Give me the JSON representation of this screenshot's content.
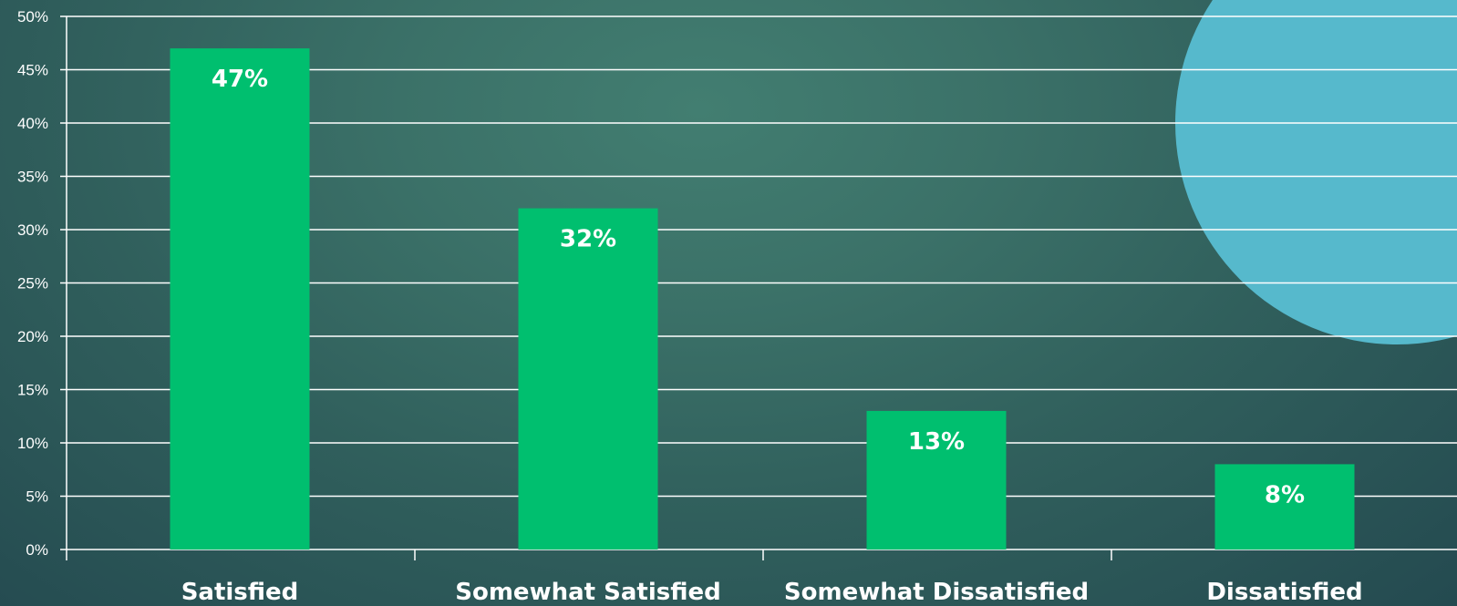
{
  "chart_data": {
    "type": "bar",
    "categories": [
      "Satisfied",
      "Somewhat Satisfied",
      "Somewhat Dissatisfied",
      "Dissatisfied"
    ],
    "values": [
      47,
      32,
      13,
      8
    ],
    "data_labels": [
      "47%",
      "32%",
      "13%",
      "8%"
    ],
    "ylim": [
      0,
      50
    ],
    "yticks": [
      0,
      5,
      10,
      15,
      20,
      25,
      30,
      35,
      40,
      45,
      50
    ],
    "ytick_labels": [
      "0%",
      "5%",
      "10%",
      "15%",
      "20%",
      "25%",
      "30%",
      "35%",
      "40%",
      "45%",
      "50%"
    ],
    "title": "",
    "xlabel": "",
    "ylabel": "",
    "grid": true,
    "legend": "none"
  },
  "colors": {
    "bar": "#00bf6f",
    "grid": "#ffffff",
    "text": "#ffffff",
    "decorative_circle": "#56b9cc",
    "background_center": "#427e71",
    "background_edge": "#244a50"
  }
}
